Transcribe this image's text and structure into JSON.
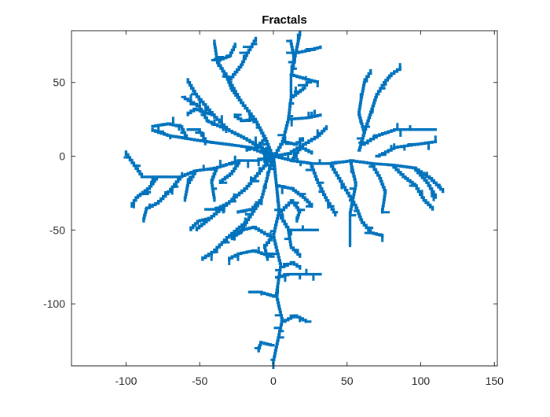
{
  "chart_data": {
    "type": "line",
    "title": "Fractals",
    "xlabel": "",
    "ylabel": "",
    "xlim": [
      -137,
      152
    ],
    "ylim": [
      -142,
      85
    ],
    "x_ticks": [
      -100,
      -50,
      0,
      50,
      100,
      150
    ],
    "y_ticks": [
      -100,
      -50,
      0,
      50
    ],
    "x_tick_labels": [
      "-100",
      "-50",
      "0",
      "50",
      "100",
      "150"
    ],
    "y_tick_labels": [
      "-100",
      "-50",
      "0",
      "50"
    ],
    "grid": false,
    "legend": "none",
    "series_color": "#0072BD",
    "series": [
      {
        "branches": [
          [
            [
              0,
              0
            ],
            [
              2,
              -20
            ],
            [
              4,
              -38
            ],
            [
              0,
              -55
            ],
            [
              5,
              -75
            ],
            [
              2,
              -95
            ],
            [
              6,
              -112
            ],
            [
              0,
              -140
            ]
          ],
          [
            [
              0,
              0
            ],
            [
              -10,
              -3
            ],
            [
              -22,
              -3
            ],
            [
              -38,
              -8
            ],
            [
              -52,
              -10
            ],
            [
              -62,
              -14
            ],
            [
              -78,
              -14
            ],
            [
              -88,
              -14
            ],
            [
              -100,
              3
            ]
          ],
          [
            [
              0,
              0
            ],
            [
              12,
              -3
            ],
            [
              25,
              -5
            ],
            [
              38,
              -5
            ],
            [
              52,
              -3
            ],
            [
              66,
              -5
            ],
            [
              80,
              -6
            ],
            [
              95,
              -8
            ],
            [
              106,
              -15
            ],
            [
              115,
              -24
            ]
          ],
          [
            [
              0,
              0
            ],
            [
              6,
              10
            ],
            [
              10,
              25
            ],
            [
              12,
              40
            ],
            [
              12,
              55
            ],
            [
              15,
              70
            ],
            [
              18,
              84
            ]
          ],
          [
            [
              0,
              0
            ],
            [
              -5,
              12
            ],
            [
              -12,
              25
            ],
            [
              -22,
              38
            ],
            [
              -30,
              52
            ],
            [
              -38,
              65
            ],
            [
              -40,
              78
            ]
          ],
          [
            [
              0,
              0
            ],
            [
              -8,
              6
            ],
            [
              -18,
              12
            ],
            [
              -30,
              18
            ],
            [
              -40,
              28
            ],
            [
              -52,
              42
            ],
            [
              -58,
              52
            ]
          ],
          [
            [
              0,
              0
            ],
            [
              -15,
              6
            ],
            [
              -30,
              8
            ],
            [
              -45,
              10
            ],
            [
              -58,
              12
            ],
            [
              -70,
              14
            ],
            [
              -82,
              18
            ]
          ],
          [
            [
              0,
              0
            ],
            [
              -8,
              -10
            ],
            [
              -18,
              -22
            ],
            [
              -30,
              -32
            ],
            [
              -42,
              -42
            ],
            [
              -52,
              -50
            ]
          ],
          [
            [
              0,
              0
            ],
            [
              -8,
              -30
            ],
            [
              -18,
              -45
            ],
            [
              -30,
              -55
            ],
            [
              -40,
              -65
            ],
            [
              -48,
              -70
            ]
          ],
          [
            [
              0,
              0
            ],
            [
              4,
              -40
            ],
            [
              10,
              -50
            ],
            [
              20,
              -50
            ],
            [
              30,
              -50
            ]
          ],
          [
            [
              2,
              -82
            ],
            [
              10,
              -80
            ],
            [
              20,
              -80
            ],
            [
              32,
              -80
            ]
          ],
          [
            [
              2,
              -95
            ],
            [
              -8,
              -92
            ],
            [
              -16,
              -92
            ]
          ],
          [
            [
              6,
              -112
            ],
            [
              14,
              -108
            ],
            [
              22,
              -112
            ]
          ],
          [
            [
              0,
              -128
            ],
            [
              -8,
              -126
            ],
            [
              -10,
              -132
            ]
          ],
          [
            [
              0,
              -68
            ],
            [
              -12,
              -64
            ],
            [
              -22,
              -66
            ],
            [
              -30,
              -70
            ]
          ],
          [
            [
              0,
              -55
            ],
            [
              -12,
              -48
            ],
            [
              -20,
              -50
            ],
            [
              -28,
              -56
            ]
          ],
          [
            [
              38,
              -5
            ],
            [
              44,
              -15
            ],
            [
              50,
              -25
            ],
            [
              56,
              -35
            ],
            [
              60,
              -45
            ],
            [
              66,
              -52
            ],
            [
              74,
              -54
            ]
          ],
          [
            [
              52,
              -3
            ],
            [
              56,
              -20
            ],
            [
              54,
              -30
            ],
            [
              52,
              -40
            ],
            [
              52,
              -60
            ]
          ],
          [
            [
              66,
              -5
            ],
            [
              72,
              -15
            ],
            [
              76,
              -25
            ],
            [
              74,
              -38
            ]
          ],
          [
            [
              25,
              -5
            ],
            [
              30,
              -18
            ],
            [
              36,
              -30
            ],
            [
              42,
              -40
            ]
          ],
          [
            [
              80,
              -6
            ],
            [
              88,
              -14
            ],
            [
              96,
              -20
            ],
            [
              102,
              -30
            ],
            [
              108,
              -36
            ]
          ],
          [
            [
              95,
              -8
            ],
            [
              104,
              -18
            ],
            [
              110,
              -28
            ]
          ],
          [
            [
              60,
              8
            ],
            [
              70,
              14
            ],
            [
              82,
              18
            ],
            [
              95,
              18
            ],
            [
              110,
              18
            ]
          ],
          [
            [
              58,
              4
            ],
            [
              62,
              18
            ],
            [
              66,
              30
            ],
            [
              70,
              42
            ],
            [
              75,
              50
            ],
            [
              80,
              56
            ],
            [
              86,
              60
            ]
          ],
          [
            [
              62,
              16
            ],
            [
              58,
              30
            ],
            [
              60,
              42
            ],
            [
              62,
              52
            ],
            [
              66,
              58
            ]
          ],
          [
            [
              70,
              0
            ],
            [
              82,
              6
            ],
            [
              96,
              8
            ],
            [
              110,
              10
            ]
          ],
          [
            [
              10,
              25
            ],
            [
              22,
              26
            ],
            [
              32,
              28
            ]
          ],
          [
            [
              12,
              40
            ],
            [
              20,
              46
            ],
            [
              24,
              52
            ]
          ],
          [
            [
              12,
              55
            ],
            [
              22,
              52
            ],
            [
              30,
              50
            ]
          ],
          [
            [
              15,
              70
            ],
            [
              24,
              72
            ],
            [
              32,
              74
            ]
          ],
          [
            [
              12,
              55
            ],
            [
              14,
              68
            ],
            [
              12,
              78
            ]
          ],
          [
            [
              -12,
              25
            ],
            [
              -20,
              24
            ],
            [
              -26,
              28
            ]
          ],
          [
            [
              -22,
              38
            ],
            [
              -28,
              46
            ],
            [
              -32,
              56
            ]
          ],
          [
            [
              -30,
              52
            ],
            [
              -22,
              62
            ],
            [
              -18,
              70
            ],
            [
              -12,
              80
            ]
          ],
          [
            [
              -38,
              65
            ],
            [
              -30,
              68
            ],
            [
              -26,
              76
            ]
          ],
          [
            [
              -30,
              18
            ],
            [
              -44,
              24
            ],
            [
              -50,
              34
            ],
            [
              -60,
              40
            ]
          ],
          [
            [
              -40,
              28
            ],
            [
              -52,
              32
            ],
            [
              -58,
              28
            ]
          ],
          [
            [
              -58,
              12
            ],
            [
              -62,
              20
            ],
            [
              -70,
              22
            ],
            [
              -82,
              20
            ]
          ],
          [
            [
              -45,
              10
            ],
            [
              -50,
              18
            ],
            [
              -58,
              18
            ]
          ],
          [
            [
              -52,
              -10
            ],
            [
              -58,
              -20
            ],
            [
              -60,
              -30
            ]
          ],
          [
            [
              -62,
              -14
            ],
            [
              -70,
              -24
            ],
            [
              -78,
              -32
            ],
            [
              -86,
              -36
            ],
            [
              -88,
              -44
            ]
          ],
          [
            [
              -78,
              -14
            ],
            [
              -84,
              -22
            ],
            [
              -92,
              -28
            ],
            [
              -96,
              -34
            ]
          ],
          [
            [
              -38,
              -8
            ],
            [
              -42,
              -18
            ],
            [
              -40,
              -30
            ]
          ],
          [
            [
              -22,
              -3
            ],
            [
              -28,
              -12
            ],
            [
              -36,
              -18
            ]
          ],
          [
            [
              -30,
              -32
            ],
            [
              -38,
              -36
            ],
            [
              -46,
              -36
            ]
          ],
          [
            [
              -42,
              -42
            ],
            [
              -50,
              -44
            ],
            [
              -56,
              -50
            ]
          ],
          [
            [
              -18,
              -45
            ],
            [
              -22,
              -52
            ],
            [
              -28,
              -54
            ]
          ],
          [
            [
              -8,
              -30
            ],
            [
              -14,
              -36
            ],
            [
              -24,
              -38
            ]
          ],
          [
            [
              2,
              -20
            ],
            [
              12,
              -22
            ],
            [
              20,
              -28
            ],
            [
              26,
              -34
            ]
          ],
          [
            [
              4,
              -38
            ],
            [
              12,
              -30
            ],
            [
              18,
              -38
            ],
            [
              16,
              -44
            ]
          ],
          [
            [
              10,
              -50
            ],
            [
              12,
              -62
            ],
            [
              18,
              -68
            ]
          ],
          [
            [
              5,
              -75
            ],
            [
              12,
              -72
            ],
            [
              18,
              -76
            ]
          ],
          [
            [
              0,
              -55
            ],
            [
              -6,
              -62
            ],
            [
              -4,
              -70
            ]
          ],
          [
            [
              -5,
              12
            ],
            [
              -10,
              6
            ],
            [
              -18,
              4
            ]
          ],
          [
            [
              6,
              10
            ],
            [
              14,
              8
            ],
            [
              20,
              12
            ]
          ],
          [
            [
              -8,
              6
            ],
            [
              -4,
              -6
            ]
          ],
          [
            [
              0,
              0
            ],
            [
              10,
              2
            ],
            [
              20,
              8
            ],
            [
              30,
              14
            ],
            [
              36,
              20
            ]
          ],
          [
            [
              12,
              -3
            ],
            [
              18,
              6
            ],
            [
              26,
              2
            ]
          ]
        ]
      }
    ]
  }
}
